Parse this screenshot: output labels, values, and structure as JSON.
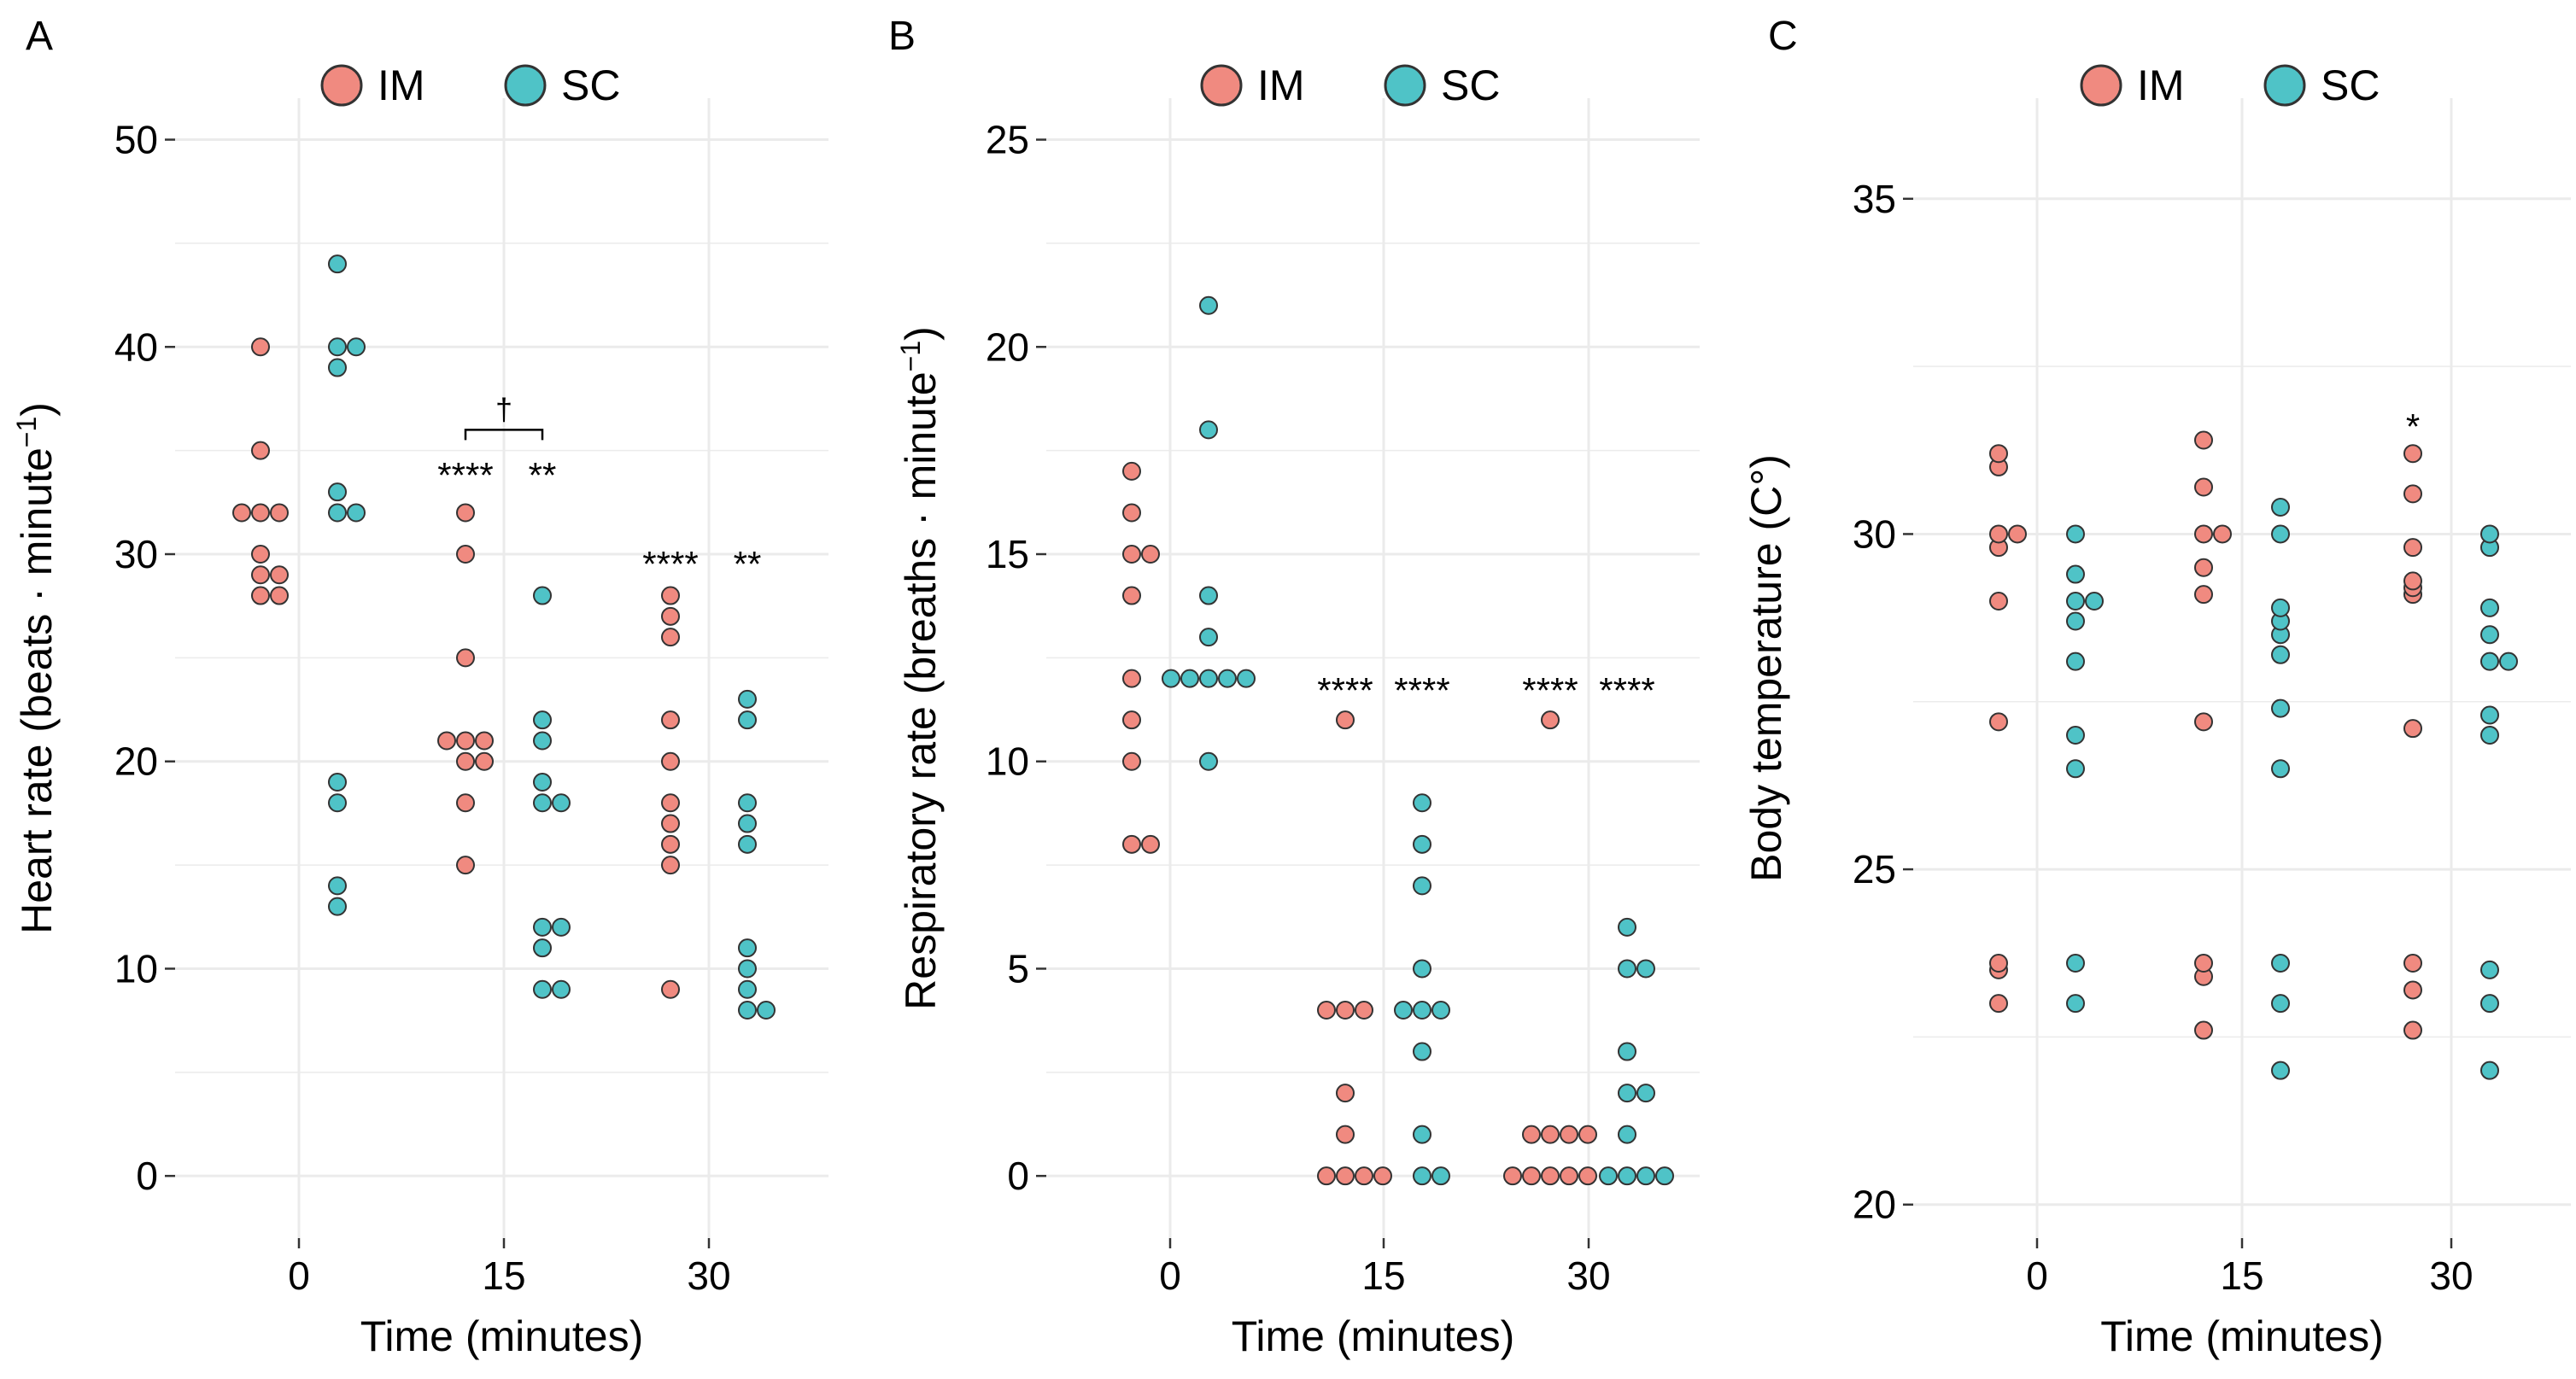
{
  "colors": {
    "IM": "#F08A80",
    "SC": "#4FC3C7",
    "outline": "#333333",
    "grid": "#EBEBEB"
  },
  "chart_data": [
    {
      "panel": "A",
      "type": "scatter",
      "title": "",
      "xlabel": "Time (minutes)",
      "ylabel": "Heart rate (beats · minute",
      "ylabel_sup": "−1",
      "ylabel_close": ")",
      "ylim": [
        -3,
        52
      ],
      "yticks": [
        "0",
        "10",
        "20",
        "30",
        "40",
        "50"
      ],
      "ytick_values": [
        0,
        10,
        20,
        30,
        40,
        50
      ],
      "categories": [
        "0",
        "15",
        "30"
      ],
      "legend": [
        "IM",
        "SC"
      ],
      "series": [
        {
          "name": "IM",
          "groups": [
            [
              40,
              35,
              32,
              32,
              32,
              30,
              29,
              29,
              28,
              28
            ],
            [
              32,
              30,
              25,
              21,
              21,
              21,
              20,
              20,
              18,
              15
            ],
            [
              28,
              27,
              26,
              22,
              20,
              18,
              17,
              16,
              15,
              9
            ]
          ]
        },
        {
          "name": "SC",
          "groups": [
            [
              44,
              40,
              40,
              39,
              33,
              32,
              32,
              19,
              18,
              14,
              13
            ],
            [
              28,
              22,
              21,
              19,
              18,
              18,
              12,
              12,
              11,
              9,
              9
            ],
            [
              23,
              22,
              18,
              17,
              16,
              11,
              10,
              9,
              8,
              8
            ]
          ]
        }
      ],
      "annotations": [
        {
          "text": "****",
          "group": 1,
          "series": "IM",
          "y": 33.8
        },
        {
          "text": "**",
          "group": 1,
          "series": "SC",
          "y": 33.8
        },
        {
          "text": "****",
          "group": 2,
          "series": "IM",
          "y": 29.5
        },
        {
          "text": "**",
          "group": 2,
          "series": "SC",
          "y": 29.5
        }
      ],
      "bracket": {
        "group": 1,
        "y": 36,
        "text": "†"
      }
    },
    {
      "panel": "B",
      "type": "scatter",
      "title": "",
      "xlabel": "Time (minutes)",
      "ylabel": "Respiratory rate (breaths · minute",
      "ylabel_sup": "−1",
      "ylabel_close": ")",
      "ylim": [
        -1.5,
        26
      ],
      "yticks": [
        "0",
        "5",
        "10",
        "15",
        "20",
        "25"
      ],
      "ytick_values": [
        0,
        5,
        10,
        15,
        20,
        25
      ],
      "categories": [
        "0",
        "15",
        "30"
      ],
      "legend": [
        "IM",
        "SC"
      ],
      "series": [
        {
          "name": "IM",
          "groups": [
            [
              17,
              16,
              15,
              15,
              14,
              12,
              11,
              10,
              8,
              8
            ],
            [
              11,
              4,
              4,
              4,
              2,
              1,
              0,
              0,
              0,
              0
            ],
            [
              11,
              1,
              1,
              1,
              1,
              0,
              0,
              0,
              0,
              0
            ]
          ]
        },
        {
          "name": "SC",
          "groups": [
            [
              21,
              18,
              14,
              13,
              12,
              12,
              12,
              12,
              12,
              10
            ],
            [
              9,
              8,
              7,
              5,
              4,
              4,
              4,
              3,
              1,
              0,
              0
            ],
            [
              6,
              5,
              5,
              3,
              2,
              2,
              1,
              0,
              0,
              0,
              0
            ]
          ]
        }
      ],
      "annotations": [
        {
          "text": "****",
          "group": 1,
          "series": "IM",
          "y": 11.7
        },
        {
          "text": "****",
          "group": 1,
          "series": "SC",
          "y": 11.7
        },
        {
          "text": "****",
          "group": 2,
          "series": "IM",
          "y": 11.7
        },
        {
          "text": "****",
          "group": 2,
          "series": "SC",
          "y": 11.7
        }
      ]
    },
    {
      "panel": "C",
      "type": "scatter",
      "title": "",
      "xlabel": "Time (minutes)",
      "ylabel": "Body temperature (C°)",
      "ylabel_sup": "",
      "ylabel_close": "",
      "ylim": [
        19.5,
        36.5
      ],
      "yticks": [
        "20",
        "25",
        "30",
        "35"
      ],
      "ytick_values": [
        20,
        25,
        30,
        35
      ],
      "categories": [
        "0",
        "15",
        "30"
      ],
      "legend": [
        "IM",
        "SC"
      ],
      "series": [
        {
          "name": "IM",
          "groups": [
            [
              31.2,
              31.0,
              30.0,
              30.0,
              29.8,
              29.0,
              27.2,
              23.6,
              23.5,
              23.0
            ],
            [
              31.4,
              30.7,
              30.0,
              30.0,
              29.5,
              29.1,
              27.2,
              23.6,
              23.4,
              22.6
            ],
            [
              31.2,
              30.6,
              29.8,
              29.3,
              29.2,
              29.1,
              27.1,
              23.6,
              23.2,
              22.6
            ]
          ]
        },
        {
          "name": "SC",
          "groups": [
            [
              30.0,
              29.4,
              29.0,
              29.0,
              28.7,
              28.1,
              27.0,
              26.5,
              23.6,
              23.0
            ],
            [
              30.4,
              30.0,
              28.9,
              28.7,
              28.5,
              28.2,
              27.4,
              26.5,
              23.6,
              23.0,
              22.0
            ],
            [
              30.0,
              29.8,
              28.9,
              28.5,
              28.1,
              28.1,
              27.3,
              27.0,
              23.5,
              23.0,
              22.0
            ]
          ]
        }
      ],
      "annotations": [
        {
          "text": "*",
          "group": 2,
          "series": "IM",
          "y": 31.6
        }
      ]
    }
  ]
}
